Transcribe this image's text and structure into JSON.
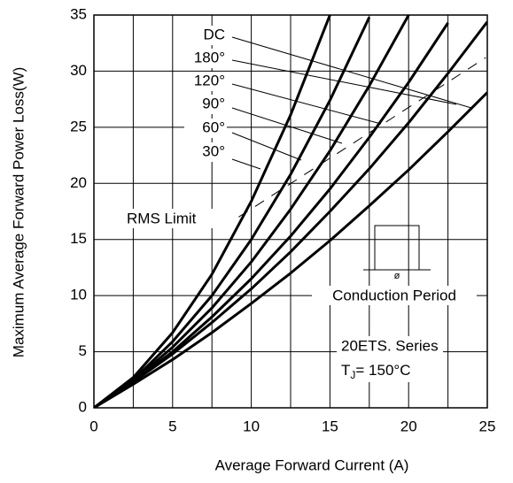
{
  "chart_data": {
    "type": "line",
    "x_label": "Average Forward Current (A)",
    "y_label": "Maximum Average Forward Power Loss(W)",
    "x": [
      0,
      2.5,
      5,
      7.5,
      10,
      12.5,
      15,
      17.5,
      20,
      22.5,
      25
    ],
    "series": [
      {
        "name": "DC",
        "color": "#000000",
        "values": [
          0,
          2.1,
          4.3,
          6.7,
          9.3,
          12.0,
          14.9,
          18.0,
          21.2,
          24.6,
          28.1
        ]
      },
      {
        "name": "180°",
        "color": "#000000",
        "values": [
          0,
          2.3,
          4.8,
          7.6,
          10.6,
          13.9,
          17.5,
          21.3,
          25.4,
          29.8,
          34.4
        ]
      },
      {
        "name": "120°",
        "color": "#000000",
        "values": [
          0,
          2.3,
          5.0,
          8.1,
          11.5,
          15.3,
          19.5,
          24.1,
          29.0,
          34.3,
          null
        ]
      },
      {
        "name": "90°",
        "color": "#000000",
        "values": [
          0,
          2.4,
          5.4,
          8.9,
          13.0,
          17.7,
          22.9,
          28.7,
          35.0,
          null,
          null
        ]
      },
      {
        "name": "60°",
        "color": "#000000",
        "values": [
          0,
          2.5,
          5.9,
          10.0,
          15.0,
          20.8,
          27.4,
          34.8,
          null,
          null,
          null
        ]
      },
      {
        "name": "30°",
        "color": "#000000",
        "values": [
          0,
          2.7,
          6.7,
          11.9,
          18.4,
          26.1,
          35.0,
          null,
          null,
          null,
          null
        ]
      }
    ],
    "rms_limit": {
      "label": "RMS Limit",
      "x": [
        9.2,
        24.9
      ],
      "y": [
        17,
        31.2
      ]
    },
    "xlim": [
      0,
      25
    ],
    "ylim": [
      0,
      35
    ],
    "xticks": [
      0,
      5,
      10,
      15,
      20,
      25
    ],
    "xminorticks": [
      2.5,
      7.5,
      12.5,
      17.5,
      22.5
    ],
    "yticks": [
      0,
      5,
      10,
      15,
      20,
      25,
      30,
      35
    ],
    "grid": true,
    "inset": {
      "phi": "ø",
      "caption": "Conduction Period"
    },
    "series_note": "20ETS. Series",
    "tj_label": {
      "main": "T",
      "sub": "J",
      "rest": "= 150°C"
    }
  }
}
